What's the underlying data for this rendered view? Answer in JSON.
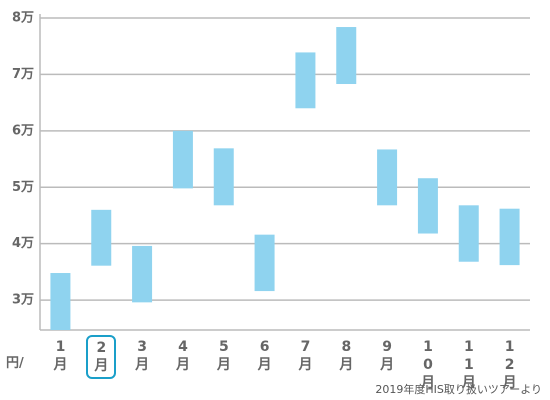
{
  "chart_data": {
    "type": "range-bar",
    "categories": [
      "1月",
      "2月",
      "3月",
      "4月",
      "5月",
      "6月",
      "7月",
      "8月",
      "9月",
      "10月",
      "11月",
      "12月"
    ],
    "series": [
      {
        "color": "#8fd3ef",
        "low": [
          24700,
          36100,
          29600,
          49800,
          46800,
          31600,
          64000,
          68300,
          46800,
          41800,
          36800,
          36200
        ],
        "high": [
          34800,
          46000,
          39600,
          60000,
          56900,
          41600,
          73900,
          78400,
          56700,
          51600,
          46800,
          46200
        ]
      }
    ],
    "ylim": [
      24700,
      80000
    ],
    "yticks": [
      {
        "value": 30000,
        "label": "3万"
      },
      {
        "value": 40000,
        "label": "4万"
      },
      {
        "value": 50000,
        "label": "5万"
      },
      {
        "value": 60000,
        "label": "6万"
      },
      {
        "value": 70000,
        "label": "7万"
      },
      {
        "value": 80000,
        "label": "8万"
      }
    ],
    "grid": true,
    "y_unit_label": "円/",
    "selected_category": "2月",
    "source": "2019年度HIS取り扱いツアーより"
  }
}
